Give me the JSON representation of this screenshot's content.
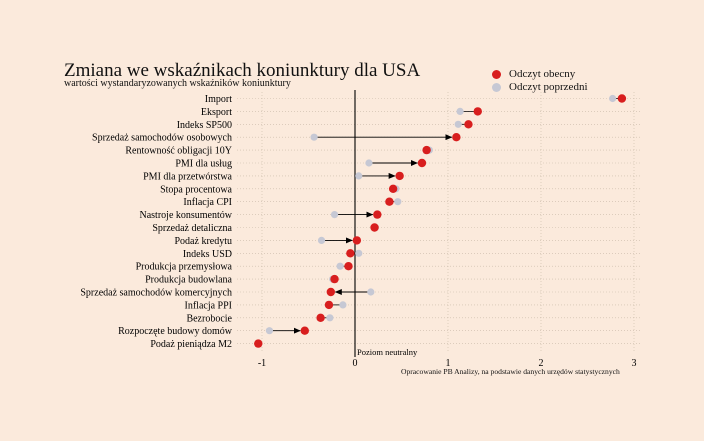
{
  "header": {
    "title": "Zmiana we wskaźnikach koniunktury dla USA",
    "subtitle": "wartości wystandaryzowanych wskaźników koniunktury"
  },
  "legend": {
    "current_label": "Odczyt obecny",
    "previous_label": "Odczyt poprzedni"
  },
  "colors": {
    "current": "#d81e1e",
    "previous": "#c6c8d4",
    "background": "#fbeadc",
    "grid": "#c9b9a8",
    "zero_line": "#000000"
  },
  "source_note": "Opracowanie PB Analizy, na podstawie danych urzędów statystycznych",
  "chart_data": {
    "type": "dumbbell",
    "title": "Zmiana we wskaźnikach koniunktury dla USA",
    "subtitle": "wartości wystandaryzowanych wskaźników koniunktury",
    "xlim": [
      -1.1,
      3.05
    ],
    "x_ticks": [
      -1,
      0,
      1,
      2,
      3
    ],
    "x_tick_labels": [
      "-1",
      "0",
      "1",
      "2",
      "3"
    ],
    "zero_annotation": "Poziom neutralny",
    "grid": "horizontal dotted",
    "legend_position": "top-right",
    "series": [
      {
        "name": "Odczyt obecny"
      },
      {
        "name": "Odczyt poprzedni"
      }
    ],
    "categories": [
      "Import",
      "Eksport",
      "Indeks SP500",
      "Sprzedaż samochodów osobowych",
      "Rentowność obligacji 10Y",
      "PMI dla usług",
      "PMI dla przetwórstwa",
      "Stopa procentowa",
      "Inflacja CPI",
      "Nastroje konsumentów",
      "Sprzedaż detaliczna",
      "Podaż kredytu",
      "Indeks USD",
      "Produkcja przemysłowa",
      "Produkcja budowlana",
      "Sprzedaż samochodów komercyjnych",
      "Inflacja PPI",
      "Bezrobocie",
      "Rozpoczęte budowy domów",
      "Podaż pieniądza M2"
    ],
    "current": [
      2.87,
      1.32,
      1.22,
      1.09,
      0.77,
      0.72,
      0.48,
      0.41,
      0.37,
      0.24,
      0.21,
      0.02,
      -0.05,
      -0.07,
      -0.22,
      -0.26,
      -0.28,
      -0.37,
      -0.54,
      -1.04
    ],
    "previous": [
      2.77,
      1.13,
      1.11,
      -0.44,
      0.8,
      0.15,
      0.04,
      0.44,
      0.46,
      -0.22,
      0.22,
      -0.36,
      0.04,
      -0.16,
      -0.24,
      0.17,
      -0.13,
      -0.27,
      -0.92,
      -1.04
    ],
    "arrows": [
      false,
      false,
      false,
      true,
      false,
      true,
      true,
      false,
      false,
      true,
      false,
      true,
      false,
      false,
      false,
      true,
      false,
      false,
      true,
      false
    ]
  }
}
